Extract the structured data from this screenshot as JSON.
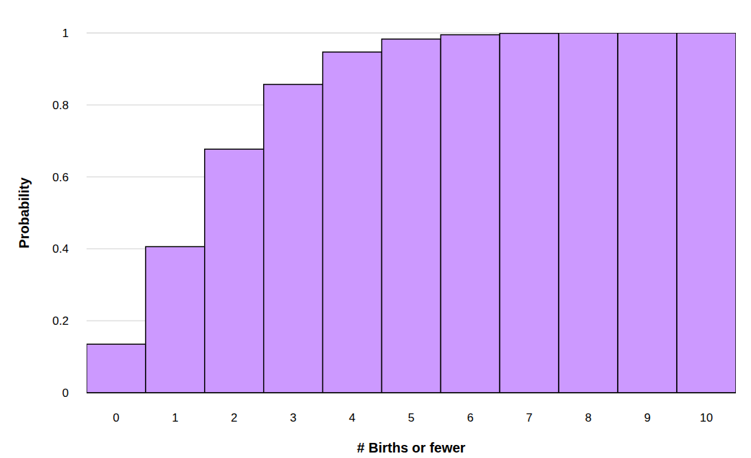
{
  "chart_data": {
    "type": "bar",
    "x_label": "# Births or fewer",
    "y_label": "Probability",
    "categories": [
      "0",
      "1",
      "2",
      "3",
      "4",
      "5",
      "6",
      "7",
      "8",
      "9",
      "10"
    ],
    "values": [
      0.135,
      0.406,
      0.677,
      0.857,
      0.947,
      0.983,
      0.995,
      0.999,
      1,
      1,
      1
    ],
    "color": "#cc99ff",
    "ylim": [
      0,
      1
    ],
    "yticks": [
      0,
      0.2,
      0.4,
      0.6,
      0.8,
      1
    ],
    "grid": true
  }
}
